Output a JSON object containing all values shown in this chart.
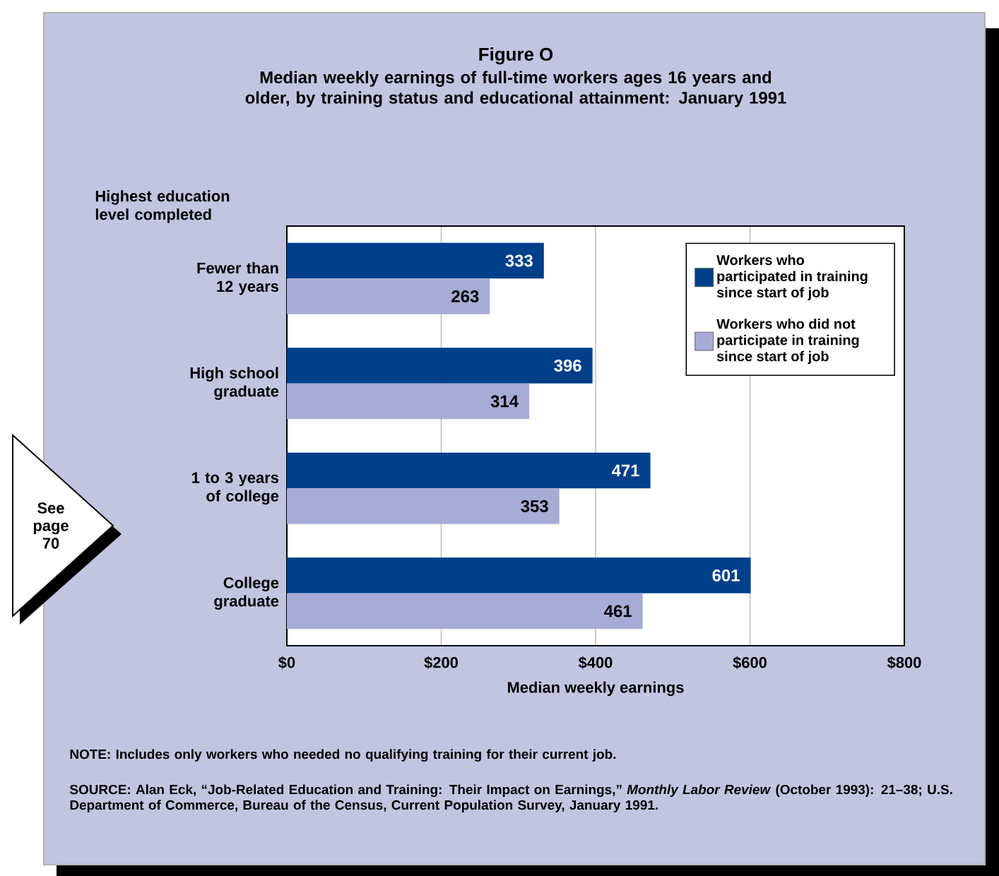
{
  "chart_data": {
    "type": "bar",
    "orientation": "horizontal",
    "title": "Figure O",
    "subtitle": "Median weekly earnings of full-time workers ages 16 years and older, by training status and educational attainment: January 1991",
    "ylabel": "Highest education level completed",
    "xlabel": "Median weekly earnings",
    "categories": [
      "Fewer than 12 years",
      "High school graduate",
      "1 to 3 years of college",
      "College graduate"
    ],
    "series": [
      {
        "name": "Workers who participated in training since start of job",
        "color": "#003f8a",
        "values": [
          333,
          396,
          471,
          601
        ],
        "value_labels": [
          "333",
          "396",
          "471",
          "601"
        ]
      },
      {
        "name": "Workers who did not participate in training since start of job",
        "color": "#a6acd6",
        "values": [
          263,
          314,
          353,
          461
        ],
        "value_labels": [
          "263",
          "314",
          "353",
          "461"
        ]
      }
    ],
    "xlim": [
      0,
      800
    ],
    "xticks": [
      {
        "value": 0,
        "label": "$0"
      },
      {
        "value": 200,
        "label": "$200"
      },
      {
        "value": 400,
        "label": "$400"
      },
      {
        "value": 600,
        "label": "$600"
      },
      {
        "value": 800,
        "label": "$800"
      }
    ],
    "grid": "x",
    "legend": "top right",
    "annotations": [
      "See page 70",
      "NOTE: Includes only workers who needed no qualifying training for their current job.",
      "SOURCE:  Alan Eck, “Job-Related Education and Training: Their Impact on Earnings,” *Monthly Labor Review* (October 1993): 21–38; U.S. Department of Commerce, Bureau of the Census, Current Population Survey, January 1991."
    ]
  }
}
